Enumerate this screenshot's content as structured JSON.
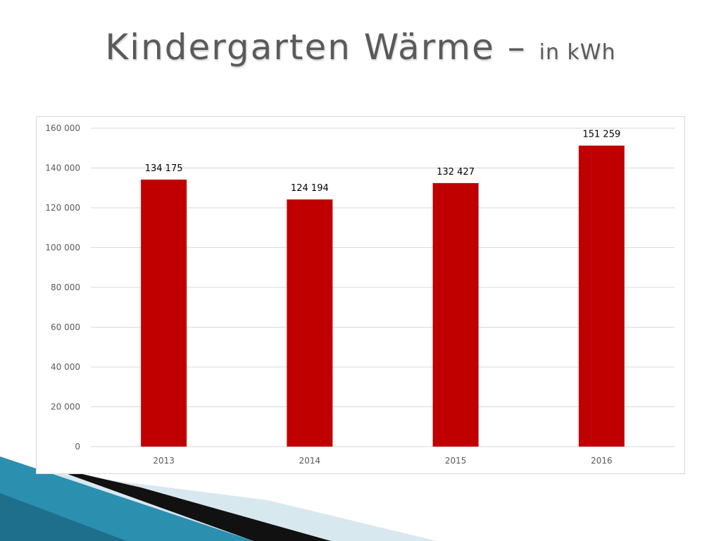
{
  "slide": {
    "title_main": "Kindergarten Wärme – ",
    "title_unit": "in kWh"
  },
  "colors": {
    "bar": "#c00000",
    "grid": "#d9d9d9",
    "tick_text": "#595959",
    "label_text": "#000000"
  },
  "chart_data": {
    "type": "bar",
    "categories": [
      "2013",
      "2014",
      "2015",
      "2016"
    ],
    "values": [
      134175,
      124194,
      132427,
      151259
    ],
    "data_labels": [
      "134 175",
      "124 194",
      "132 427",
      "151 259"
    ],
    "ylim": [
      0,
      160000
    ],
    "yticks": [
      0,
      20000,
      40000,
      60000,
      80000,
      100000,
      120000,
      140000,
      160000
    ],
    "ytick_labels": [
      "0",
      "20 000",
      "40 000",
      "60 000",
      "80 000",
      "100 000",
      "120 000",
      "140 000",
      "160 000"
    ],
    "grid": true,
    "legend": "none"
  }
}
